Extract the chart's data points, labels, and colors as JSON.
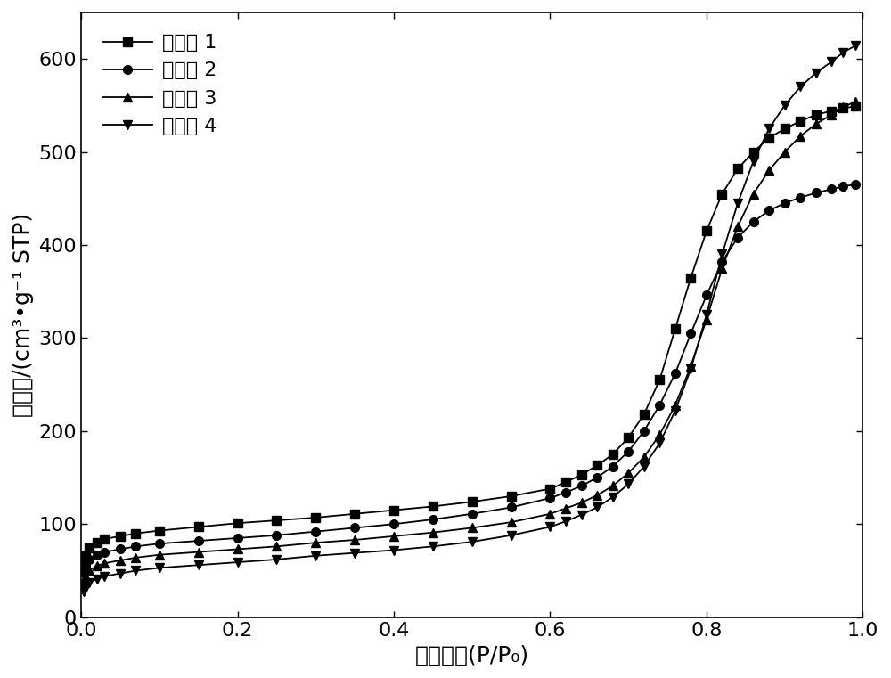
{
  "xlabel": "相对压力(P/P₀)",
  "ylabel": "吸附量/(cm³•g⁻¹ STP)",
  "xlim": [
    0.0,
    1.0
  ],
  "ylim": [
    0,
    650
  ],
  "yticks": [
    0,
    100,
    200,
    300,
    400,
    500,
    600
  ],
  "xticks": [
    0.0,
    0.2,
    0.4,
    0.6,
    0.8,
    1.0
  ],
  "legend_labels": [
    "实施例 1",
    "实施例 2",
    "实施例 3",
    "实施例 4"
  ],
  "series": [
    {
      "x": [
        0.003,
        0.006,
        0.01,
        0.02,
        0.03,
        0.05,
        0.07,
        0.1,
        0.15,
        0.2,
        0.25,
        0.3,
        0.35,
        0.4,
        0.45,
        0.5,
        0.55,
        0.6,
        0.62,
        0.64,
        0.66,
        0.68,
        0.7,
        0.72,
        0.74,
        0.76,
        0.78,
        0.8,
        0.82,
        0.84,
        0.86,
        0.88,
        0.9,
        0.92,
        0.94,
        0.96,
        0.975,
        0.99
      ],
      "y": [
        58,
        66,
        74,
        80,
        84,
        87,
        90,
        93,
        97,
        101,
        104,
        107,
        111,
        115,
        119,
        124,
        130,
        138,
        145,
        153,
        163,
        175,
        193,
        218,
        255,
        310,
        365,
        415,
        455,
        482,
        500,
        515,
        525,
        533,
        540,
        544,
        547,
        549
      ],
      "marker": "s",
      "label": "实施例 1"
    },
    {
      "x": [
        0.003,
        0.006,
        0.01,
        0.02,
        0.03,
        0.05,
        0.07,
        0.1,
        0.15,
        0.2,
        0.25,
        0.3,
        0.35,
        0.4,
        0.45,
        0.5,
        0.55,
        0.6,
        0.62,
        0.64,
        0.66,
        0.68,
        0.7,
        0.72,
        0.74,
        0.76,
        0.78,
        0.8,
        0.82,
        0.84,
        0.86,
        0.88,
        0.9,
        0.92,
        0.94,
        0.96,
        0.975,
        0.99
      ],
      "y": [
        48,
        55,
        62,
        67,
        70,
        73,
        76,
        79,
        82,
        85,
        88,
        92,
        96,
        100,
        105,
        111,
        118,
        128,
        134,
        141,
        150,
        162,
        178,
        200,
        228,
        262,
        305,
        346,
        382,
        408,
        425,
        437,
        445,
        451,
        456,
        460,
        463,
        465
      ],
      "marker": "o",
      "label": "实施例 2"
    },
    {
      "x": [
        0.003,
        0.006,
        0.01,
        0.02,
        0.03,
        0.05,
        0.07,
        0.1,
        0.15,
        0.2,
        0.25,
        0.3,
        0.35,
        0.4,
        0.45,
        0.5,
        0.55,
        0.6,
        0.62,
        0.64,
        0.66,
        0.68,
        0.7,
        0.72,
        0.74,
        0.76,
        0.78,
        0.8,
        0.82,
        0.84,
        0.86,
        0.88,
        0.9,
        0.92,
        0.94,
        0.96,
        0.975,
        0.99
      ],
      "y": [
        38,
        44,
        50,
        55,
        58,
        61,
        64,
        67,
        70,
        73,
        76,
        80,
        83,
        87,
        91,
        96,
        102,
        111,
        117,
        123,
        131,
        141,
        155,
        172,
        196,
        228,
        270,
        320,
        375,
        420,
        455,
        480,
        500,
        517,
        530,
        540,
        548,
        554
      ],
      "marker": "^",
      "label": "实施例 3"
    },
    {
      "x": [
        0.003,
        0.006,
        0.01,
        0.02,
        0.03,
        0.05,
        0.07,
        0.1,
        0.15,
        0.2,
        0.25,
        0.3,
        0.35,
        0.4,
        0.45,
        0.5,
        0.55,
        0.6,
        0.62,
        0.64,
        0.66,
        0.68,
        0.7,
        0.72,
        0.74,
        0.76,
        0.78,
        0.8,
        0.82,
        0.84,
        0.86,
        0.88,
        0.9,
        0.92,
        0.94,
        0.96,
        0.975,
        0.99
      ],
      "y": [
        27,
        32,
        37,
        41,
        44,
        47,
        50,
        53,
        56,
        59,
        62,
        66,
        69,
        72,
        76,
        81,
        88,
        97,
        103,
        110,
        118,
        129,
        143,
        162,
        187,
        222,
        267,
        325,
        390,
        445,
        490,
        525,
        550,
        570,
        585,
        597,
        607,
        614
      ],
      "marker": "v",
      "label": "实施例 4"
    }
  ],
  "line_color": "#000000",
  "marker_size": 7,
  "line_width": 1.3,
  "font_size_label": 18,
  "font_size_tick": 16,
  "font_size_legend": 16
}
